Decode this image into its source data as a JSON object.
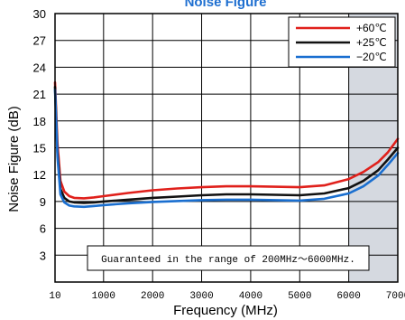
{
  "chart_data": {
    "type": "line",
    "title": "Noise Figure",
    "xlabel": "Frequency (MHz)",
    "ylabel": "Noise Figure (dB)",
    "xlim": [
      10,
      7000
    ],
    "ylim": [
      0,
      30
    ],
    "xticks": [
      10,
      1000,
      2000,
      3000,
      4000,
      5000,
      6000,
      7000
    ],
    "xtick_labels": [
      "10",
      "1000",
      "2000",
      "3000",
      "4000",
      "5000",
      "6000",
      "7000"
    ],
    "yticks": [
      3,
      6,
      9,
      12,
      15,
      18,
      21,
      24,
      27,
      30
    ],
    "ytick_labels": [
      "3",
      "6",
      "9",
      "12",
      "15",
      "18",
      "21",
      "24",
      "27",
      "30"
    ],
    "grid": true,
    "legend_position": "top-right",
    "shaded_region": {
      "x_start": 6000,
      "x_end": 7000
    },
    "annotation": "Guaranteed in the range of 200MHz～6000MHz.",
    "colors": {
      "shade": "#d5d9e0",
      "frame": "#000000",
      "title": "#1e6fd0"
    },
    "series": [
      {
        "name": "+60℃",
        "color": "#e0201b",
        "x": [
          10,
          60,
          120,
          200,
          300,
          400,
          600,
          800,
          1000,
          1500,
          2000,
          2500,
          3000,
          3500,
          4000,
          4500,
          5000,
          5500,
          6000,
          6300,
          6600,
          6800,
          7000
        ],
        "y": [
          22.3,
          15.5,
          11.3,
          10.1,
          9.6,
          9.4,
          9.35,
          9.45,
          9.6,
          9.95,
          10.25,
          10.45,
          10.6,
          10.7,
          10.7,
          10.65,
          10.6,
          10.8,
          11.5,
          12.3,
          13.4,
          14.5,
          16.0
        ]
      },
      {
        "name": "+25℃",
        "color": "#111111",
        "x": [
          10,
          60,
          120,
          200,
          300,
          400,
          600,
          800,
          1000,
          1500,
          2000,
          2500,
          3000,
          3500,
          4000,
          4500,
          5000,
          5500,
          6000,
          6300,
          6600,
          6800,
          7000
        ],
        "y": [
          21.8,
          14.5,
          10.4,
          9.4,
          9.0,
          8.9,
          8.85,
          8.9,
          9.0,
          9.2,
          9.4,
          9.55,
          9.7,
          9.8,
          9.8,
          9.75,
          9.7,
          9.9,
          10.5,
          11.3,
          12.5,
          13.7,
          15.0
        ]
      },
      {
        "name": "−20℃",
        "color": "#1a6fd0",
        "x": [
          10,
          60,
          120,
          200,
          300,
          400,
          600,
          800,
          1000,
          1500,
          2000,
          2500,
          3000,
          3500,
          4000,
          4500,
          5000,
          5500,
          6000,
          6300,
          6600,
          6800,
          7000
        ],
        "y": [
          21.5,
          14.0,
          9.8,
          8.9,
          8.55,
          8.45,
          8.4,
          8.5,
          8.6,
          8.8,
          8.95,
          9.05,
          9.15,
          9.2,
          9.2,
          9.15,
          9.1,
          9.3,
          9.9,
          10.7,
          11.9,
          13.1,
          14.4
        ]
      }
    ]
  }
}
